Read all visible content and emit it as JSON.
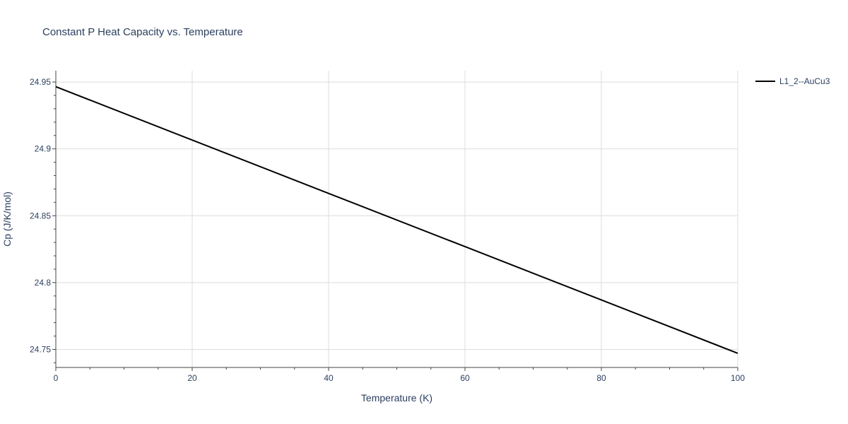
{
  "chart_data": {
    "type": "line",
    "title": "Constant P Heat Capacity vs. Temperature",
    "xlabel": "Temperature (K)",
    "ylabel": "Cp (J/K/mol)",
    "xlim": [
      0,
      100
    ],
    "ylim": [
      24.7365,
      24.9585
    ],
    "xticks": [
      0,
      20,
      40,
      60,
      80,
      100
    ],
    "xtick_labels": [
      "0",
      "20",
      "40",
      "60",
      "80",
      "100"
    ],
    "yticks": [
      24.75,
      24.8,
      24.85,
      24.9,
      24.95
    ],
    "ytick_labels": [
      "24.75",
      "24.8",
      "24.85",
      "24.9",
      "24.95"
    ],
    "grid": true,
    "legend_position": "top-right",
    "series": [
      {
        "name": "L1_2--AuCu3",
        "color": "#000000",
        "x": [
          0,
          20,
          40,
          60,
          80,
          100
        ],
        "y": [
          24.9465,
          24.9066,
          24.8667,
          24.8269,
          24.787,
          24.7471
        ]
      }
    ]
  }
}
